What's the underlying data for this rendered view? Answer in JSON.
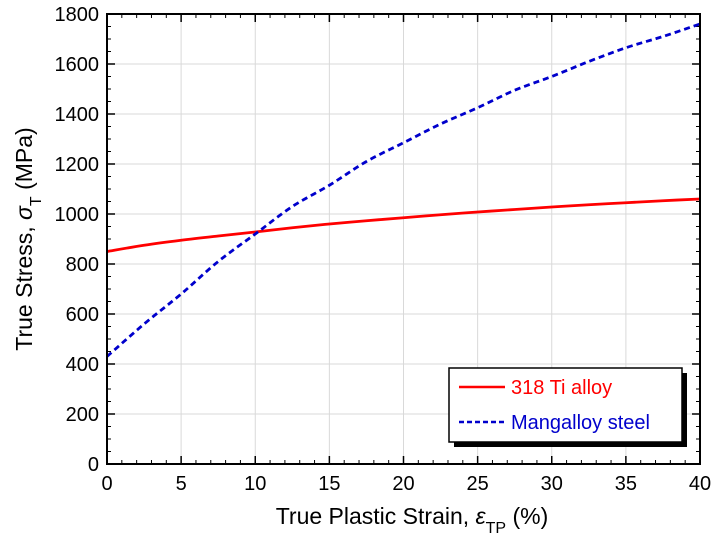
{
  "chart_data": {
    "type": "line",
    "xlabel": {
      "main": "True Plastic Strain, ",
      "symbol": "ε",
      "subscript": "TP",
      "unit": " (%)"
    },
    "ylabel": {
      "main": "True Stress, ",
      "symbol": "σ",
      "subscript": "T",
      "unit": " (MPa)"
    },
    "xlim": [
      0,
      40
    ],
    "ylim": [
      0,
      1800
    ],
    "xticks": [
      0,
      5,
      10,
      15,
      20,
      25,
      30,
      35,
      40
    ],
    "yticks": [
      0,
      200,
      400,
      600,
      800,
      1000,
      1200,
      1400,
      1600,
      1800
    ],
    "grid": true,
    "legend_position": "bottom-right",
    "series": [
      {
        "name": "318 Ti alloy",
        "color": "#ff0000",
        "style": "solid",
        "x": [
          0,
          2.5,
          5,
          7.5,
          10,
          12.5,
          15,
          17.5,
          20,
          22.5,
          25,
          27.5,
          30,
          32.5,
          35,
          37.5,
          40
        ],
        "y": [
          850,
          875,
          895,
          912,
          928,
          945,
          960,
          973,
          985,
          997,
          1008,
          1018,
          1028,
          1037,
          1045,
          1053,
          1060
        ]
      },
      {
        "name": "Mangalloy steel",
        "color": "#0000cc",
        "style": "dashed",
        "x": [
          0,
          2.5,
          5,
          7.5,
          10,
          12.5,
          15,
          17.5,
          20,
          22.5,
          25,
          27.5,
          30,
          32.5,
          35,
          37.5,
          40
        ],
        "y": [
          430,
          560,
          680,
          810,
          920,
          1030,
          1115,
          1210,
          1285,
          1360,
          1425,
          1495,
          1550,
          1610,
          1665,
          1710,
          1760
        ]
      }
    ]
  }
}
